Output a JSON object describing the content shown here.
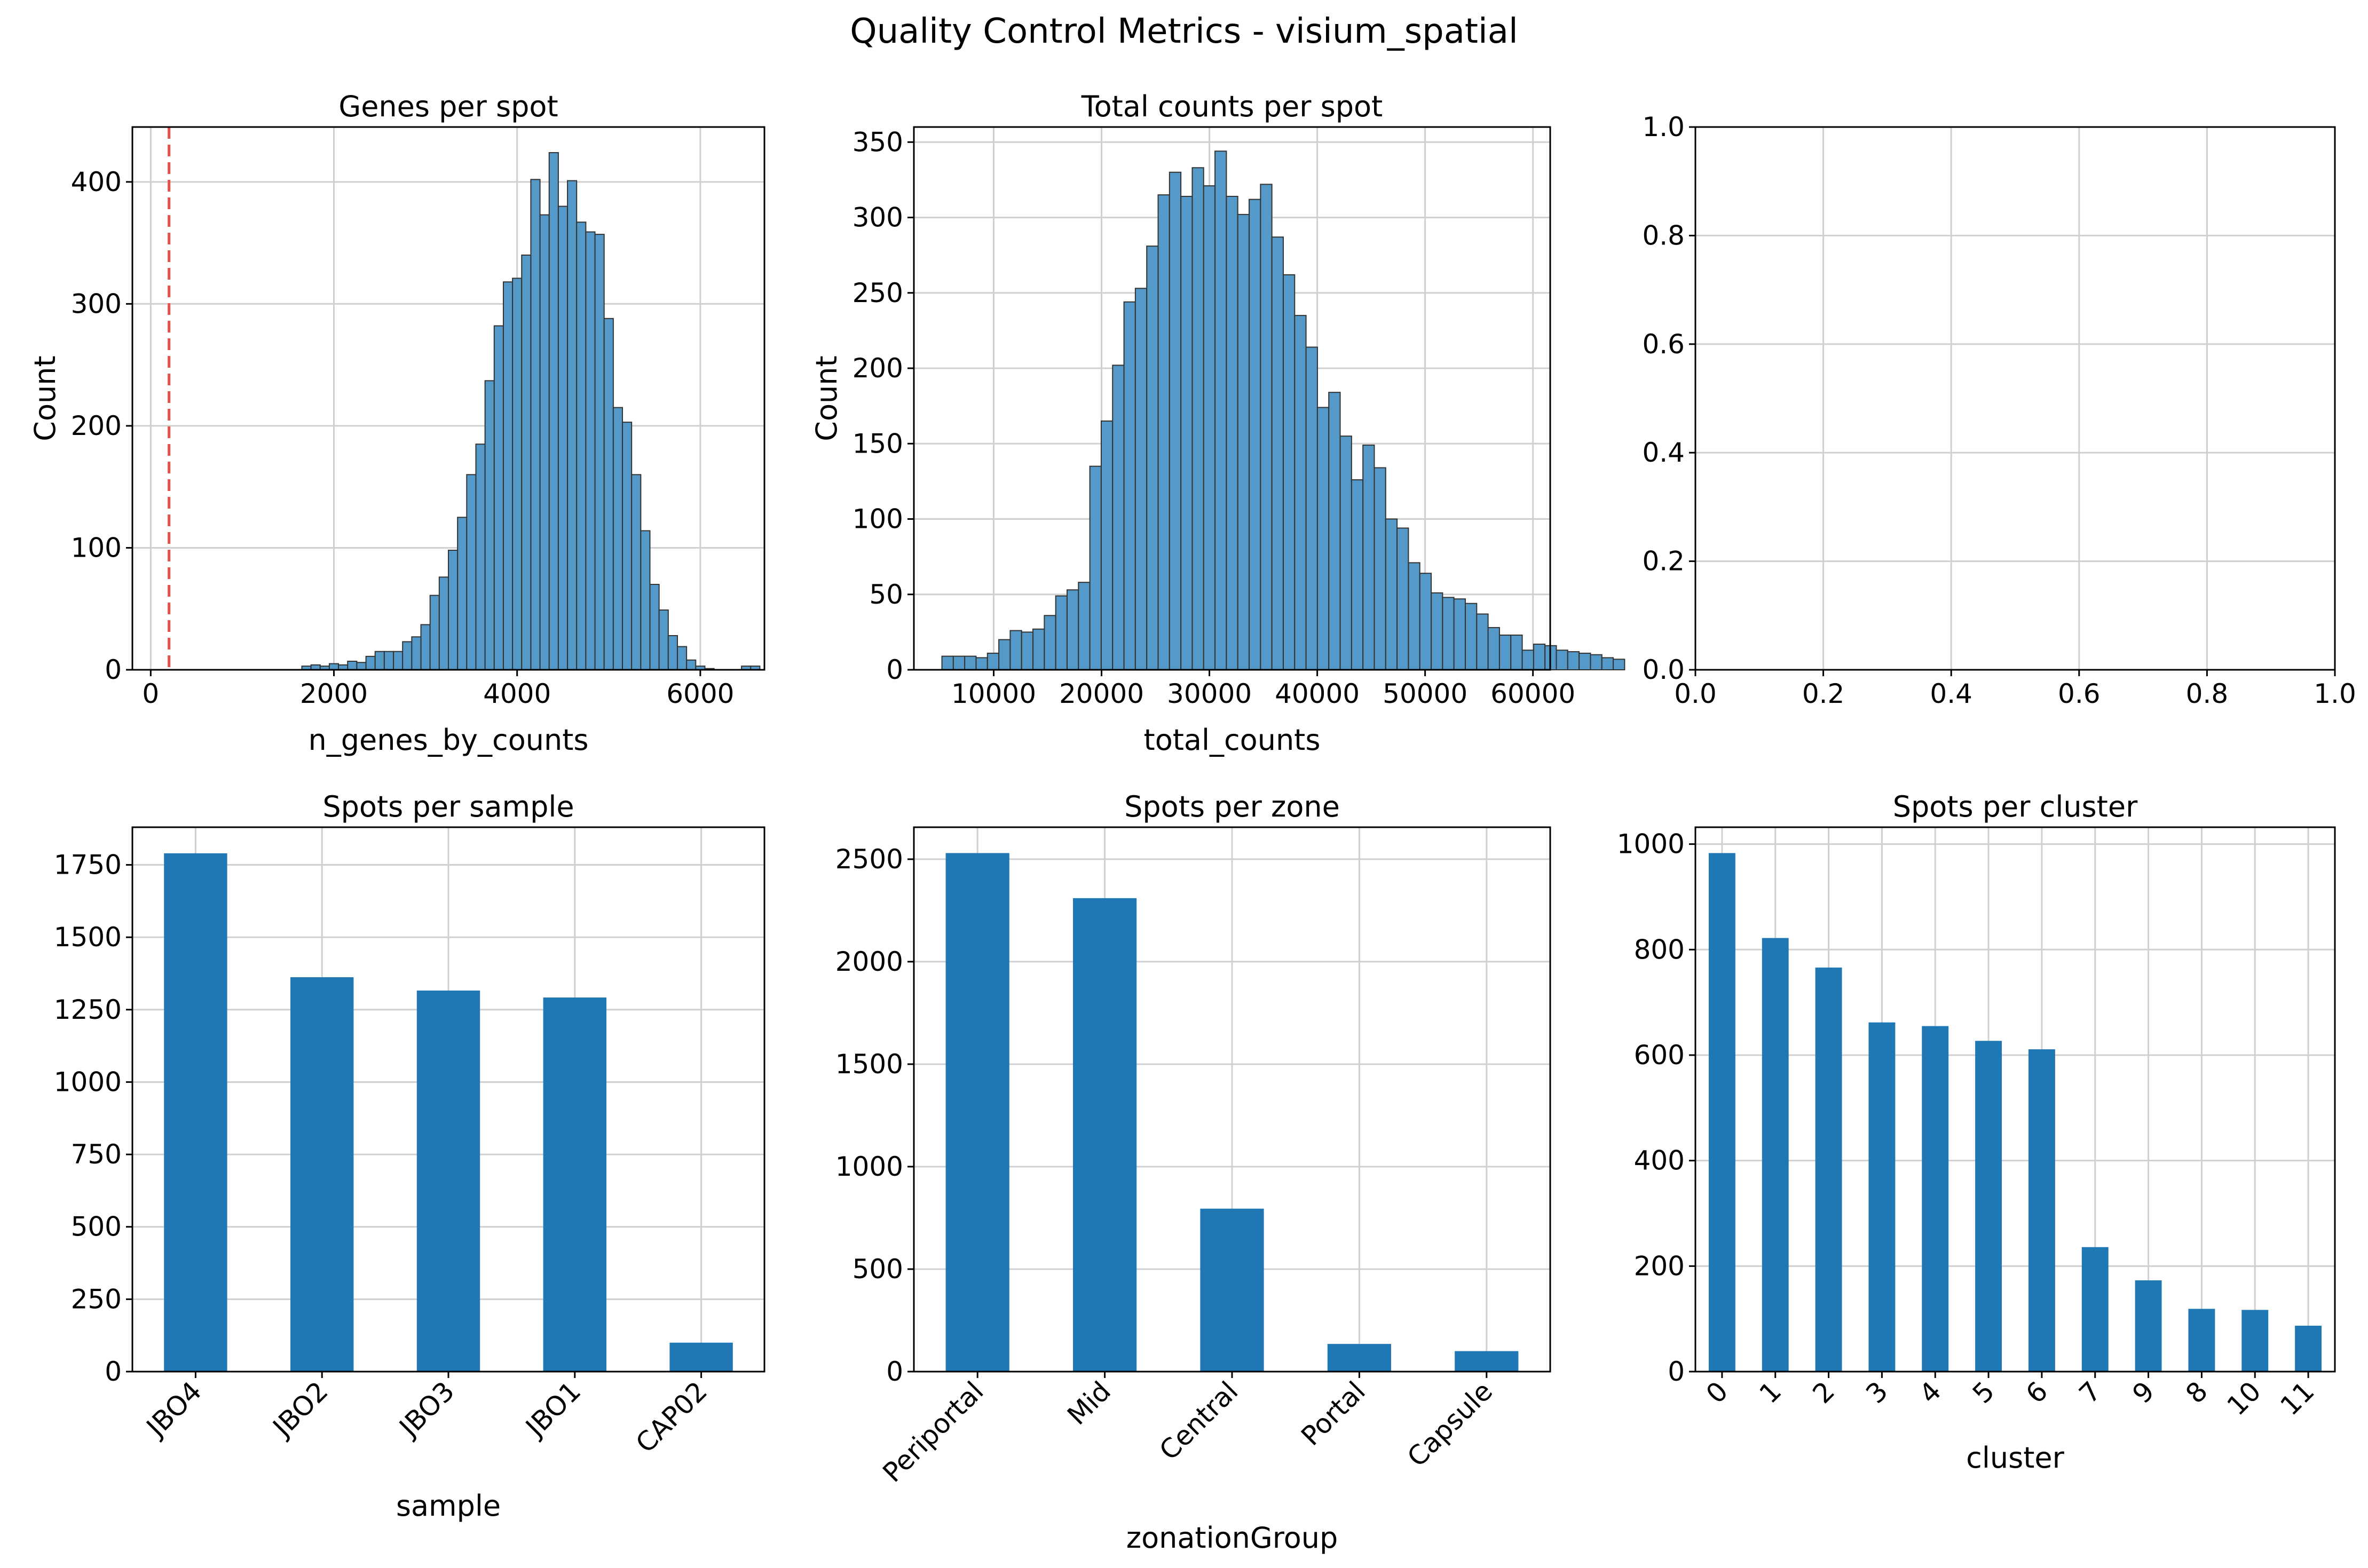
{
  "figure": {
    "title": "Quality Control Metrics - visium_spatial"
  },
  "colors": {
    "hist_fill": "#5499c7",
    "bar_fill": "#1f77b4",
    "edge": "#333333",
    "grid": "#d0d0d0",
    "threshold_line": "#e8504a"
  },
  "chart_data": [
    {
      "id": "genes",
      "type": "bar",
      "subtype": "histogram",
      "title": "Genes per spot",
      "xlabel": "n_genes_by_counts",
      "ylabel": "Count",
      "xlim": [
        -200,
        6700
      ],
      "ylim": [
        0,
        445
      ],
      "xticks": [
        0,
        2000,
        4000,
        6000
      ],
      "yticks": [
        0,
        100,
        200,
        300,
        400
      ],
      "grid": true,
      "bin_start": 1650,
      "bin_width": 100,
      "values": [
        3,
        4,
        3,
        5,
        4,
        7,
        6,
        11,
        15,
        15,
        15,
        23,
        27,
        37,
        61,
        76,
        98,
        125,
        160,
        185,
        237,
        282,
        318,
        321,
        340,
        402,
        373,
        424,
        380,
        401,
        367,
        359,
        357,
        288,
        215,
        203,
        160,
        114,
        70,
        49,
        28,
        19,
        8,
        3,
        1,
        0,
        0,
        0,
        3,
        3
      ],
      "threshold": 200,
      "threshold_style": "dashed"
    },
    {
      "id": "counts",
      "type": "bar",
      "subtype": "histogram",
      "title": "Total counts per spot",
      "xlabel": "total_counts",
      "ylabel": "Count",
      "xlim": [
        2600,
        61600
      ],
      "ylim": [
        0,
        360
      ],
      "xticks": [
        10000,
        20000,
        30000,
        40000,
        50000,
        60000
      ],
      "yticks": [
        0,
        50,
        100,
        150,
        200,
        250,
        300,
        350
      ],
      "grid": true,
      "bin_start": 5200,
      "bin_width": 1055,
      "values": [
        9,
        9,
        9,
        8,
        11,
        20,
        26,
        25,
        27,
        36,
        49,
        53,
        58,
        135,
        165,
        202,
        244,
        253,
        281,
        315,
        330,
        314,
        333,
        321,
        344,
        314,
        302,
        312,
        322,
        287,
        262,
        235,
        214,
        174,
        184,
        155,
        126,
        149,
        134,
        100,
        94,
        71,
        64,
        51,
        48,
        47,
        44,
        37,
        28,
        23,
        23,
        13,
        17,
        16,
        13,
        12,
        11,
        10,
        8,
        7
      ],
      "grid_x": [
        10000,
        20000,
        30000,
        40000,
        50000,
        60000
      ]
    },
    {
      "id": "empty",
      "type": "scatter",
      "title": "",
      "xlim": [
        0,
        1
      ],
      "ylim": [
        0,
        1
      ],
      "xticks": [
        "0.0",
        "0.2",
        "0.4",
        "0.6",
        "0.8",
        "1.0"
      ],
      "yticks": [
        "0.0",
        "0.2",
        "0.4",
        "0.6",
        "0.8",
        "1.0"
      ],
      "grid": true,
      "values": []
    },
    {
      "id": "sample",
      "type": "bar",
      "title": "Spots per sample",
      "xlabel": "sample",
      "ylabel": "",
      "categories": [
        "JBO4",
        "JBO2",
        "JBO3",
        "JBO1",
        "CAP02"
      ],
      "values": [
        1790,
        1362,
        1316,
        1292,
        100
      ],
      "ylim": [
        0,
        1880
      ],
      "yticks": [
        0,
        250,
        500,
        750,
        1000,
        1250,
        1500,
        1750
      ],
      "grid": true
    },
    {
      "id": "zone",
      "type": "bar",
      "title": "Spots per zone",
      "xlabel": "zonationGroup",
      "ylabel": "",
      "categories": [
        "Periportal",
        "Mid",
        "Central",
        "Portal",
        "Capsule"
      ],
      "values": [
        2530,
        2310,
        795,
        135,
        100
      ],
      "ylim": [
        0,
        2656
      ],
      "yticks": [
        0,
        500,
        1000,
        1500,
        2000,
        2500
      ],
      "grid": true
    },
    {
      "id": "cluster",
      "type": "bar",
      "title": "Spots per cluster",
      "xlabel": "cluster",
      "ylabel": "",
      "categories": [
        "0",
        "1",
        "2",
        "3",
        "4",
        "5",
        "6",
        "7",
        "9",
        "8",
        "10",
        "11"
      ],
      "values": [
        983,
        822,
        766,
        662,
        655,
        627,
        611,
        236,
        173,
        119,
        117,
        87
      ],
      "ylim": [
        0,
        1032
      ],
      "yticks": [
        0,
        200,
        400,
        600,
        800,
        1000
      ],
      "grid": true
    }
  ]
}
